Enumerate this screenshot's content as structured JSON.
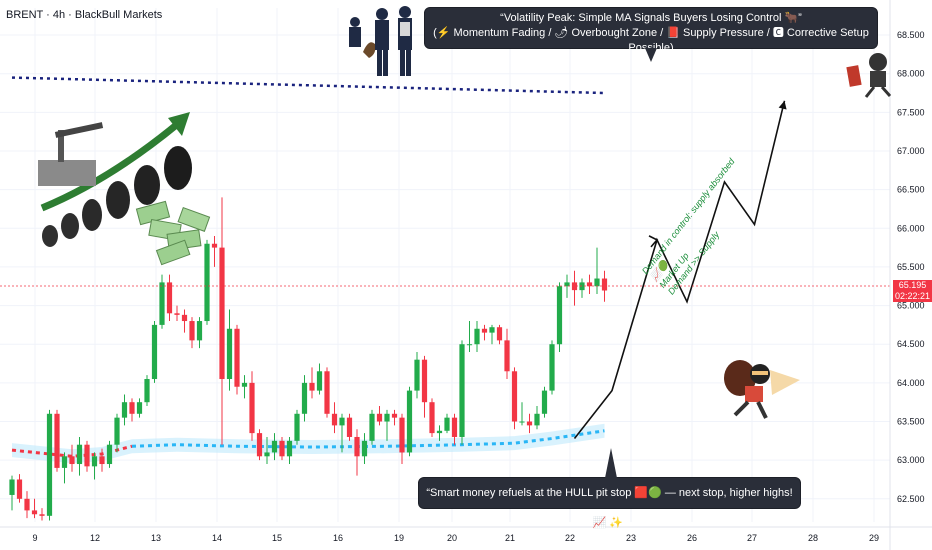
{
  "header": {
    "symbol": "BRENT · 4h · BlackBull Markets"
  },
  "current_price": {
    "value": "65.195",
    "countdown": "02:22:21",
    "color": "#f23645"
  },
  "colors": {
    "up": "#22ab4b",
    "down": "#f23645",
    "hull": "#29b6f6",
    "hull_band": "#bfe9fb",
    "resistance": "#1a237e"
  },
  "callouts": {
    "top_line1": "“Volatility Peak: Simple MA Signals Buyers Losing Control 🐂”",
    "top_line2": "(⚡ Momentum Fading / 🌶 Overbought Zone / 📕 Supply Pressure / 🅲 Corrective Setup Possible)",
    "bottom": "“Smart money refuels at the HULL pit stop 🟥🟢 — next stop, higher highs! 📈 ✨”"
  },
  "demand_note": [
    "Demand in control: supply absorbed 📈🟢",
    "Market Up",
    "Demand >> Supply"
  ],
  "illustrations": [
    "oil-barrels-with-cash-and-growth-arrow",
    "police-officers-with-dog",
    "thief-with-money-bag",
    "running-thief-with-cash"
  ],
  "chart_data": {
    "type": "candlestick",
    "title": "",
    "xlabel": "",
    "ylabel": "",
    "x_ticks": [
      "9",
      "12",
      "13",
      "14",
      "15",
      "16",
      "19",
      "20",
      "21",
      "22",
      "23",
      "26",
      "27",
      "28",
      "29"
    ],
    "y_ticks": [
      "62.500",
      "63.000",
      "63.500",
      "64.000",
      "64.500",
      "65.000",
      "65.500",
      "66.000",
      "66.500",
      "67.000",
      "67.500",
      "68.000",
      "68.500"
    ],
    "ylim": [
      62.2,
      68.85
    ],
    "candles": [
      {
        "o": 62.55,
        "h": 62.8,
        "l": 62.35,
        "c": 62.75
      },
      {
        "o": 62.75,
        "h": 62.82,
        "l": 62.45,
        "c": 62.5
      },
      {
        "o": 62.5,
        "h": 62.6,
        "l": 62.25,
        "c": 62.35
      },
      {
        "o": 62.35,
        "h": 62.5,
        "l": 62.25,
        "c": 62.3
      },
      {
        "o": 62.3,
        "h": 62.38,
        "l": 62.22,
        "c": 62.28
      },
      {
        "o": 62.28,
        "h": 63.65,
        "l": 62.22,
        "c": 63.6
      },
      {
        "o": 63.6,
        "h": 63.65,
        "l": 62.85,
        "c": 62.9
      },
      {
        "o": 62.9,
        "h": 63.1,
        "l": 62.7,
        "c": 63.05
      },
      {
        "o": 63.05,
        "h": 63.2,
        "l": 62.85,
        "c": 62.95
      },
      {
        "o": 62.95,
        "h": 63.3,
        "l": 62.8,
        "c": 63.2
      },
      {
        "o": 63.2,
        "h": 63.25,
        "l": 62.85,
        "c": 62.92
      },
      {
        "o": 62.92,
        "h": 63.1,
        "l": 62.75,
        "c": 63.05
      },
      {
        "o": 63.05,
        "h": 63.15,
        "l": 62.85,
        "c": 62.95
      },
      {
        "o": 62.95,
        "h": 63.25,
        "l": 62.9,
        "c": 63.2
      },
      {
        "o": 63.2,
        "h": 63.6,
        "l": 63.1,
        "c": 63.55
      },
      {
        "o": 63.55,
        "h": 63.85,
        "l": 63.45,
        "c": 63.75
      },
      {
        "o": 63.75,
        "h": 63.8,
        "l": 63.5,
        "c": 63.6
      },
      {
        "o": 63.6,
        "h": 63.8,
        "l": 63.55,
        "c": 63.75
      },
      {
        "o": 63.75,
        "h": 64.1,
        "l": 63.7,
        "c": 64.05
      },
      {
        "o": 64.05,
        "h": 64.8,
        "l": 64.0,
        "c": 64.75
      },
      {
        "o": 64.75,
        "h": 65.4,
        "l": 64.7,
        "c": 65.3
      },
      {
        "o": 65.3,
        "h": 65.4,
        "l": 64.8,
        "c": 64.9
      },
      {
        "o": 64.9,
        "h": 65.0,
        "l": 64.8,
        "c": 64.88
      },
      {
        "o": 64.88,
        "h": 64.95,
        "l": 64.65,
        "c": 64.8
      },
      {
        "o": 64.8,
        "h": 64.85,
        "l": 64.45,
        "c": 64.55
      },
      {
        "o": 64.55,
        "h": 64.85,
        "l": 64.45,
        "c": 64.8
      },
      {
        "o": 64.8,
        "h": 65.85,
        "l": 64.75,
        "c": 65.8
      },
      {
        "o": 65.8,
        "h": 65.9,
        "l": 65.5,
        "c": 65.75
      },
      {
        "o": 65.75,
        "h": 66.4,
        "l": 63.2,
        "c": 64.05
      },
      {
        "o": 64.05,
        "h": 64.95,
        "l": 63.9,
        "c": 64.7
      },
      {
        "o": 64.7,
        "h": 64.75,
        "l": 63.85,
        "c": 63.95
      },
      {
        "o": 63.95,
        "h": 64.1,
        "l": 63.8,
        "c": 64.0
      },
      {
        "o": 64.0,
        "h": 64.15,
        "l": 63.25,
        "c": 63.35
      },
      {
        "o": 63.35,
        "h": 63.4,
        "l": 63.0,
        "c": 63.05
      },
      {
        "o": 63.05,
        "h": 63.3,
        "l": 62.95,
        "c": 63.1
      },
      {
        "o": 63.1,
        "h": 63.35,
        "l": 63.0,
        "c": 63.25
      },
      {
        "o": 63.25,
        "h": 63.3,
        "l": 63.0,
        "c": 63.05
      },
      {
        "o": 63.05,
        "h": 63.3,
        "l": 62.95,
        "c": 63.25
      },
      {
        "o": 63.25,
        "h": 63.65,
        "l": 63.2,
        "c": 63.6
      },
      {
        "o": 63.6,
        "h": 64.1,
        "l": 63.5,
        "c": 64.0
      },
      {
        "o": 64.0,
        "h": 64.2,
        "l": 63.8,
        "c": 63.9
      },
      {
        "o": 63.9,
        "h": 64.25,
        "l": 63.85,
        "c": 64.15
      },
      {
        "o": 64.15,
        "h": 64.2,
        "l": 63.55,
        "c": 63.6
      },
      {
        "o": 63.6,
        "h": 63.75,
        "l": 63.35,
        "c": 63.45
      },
      {
        "o": 63.45,
        "h": 63.6,
        "l": 63.1,
        "c": 63.55
      },
      {
        "o": 63.55,
        "h": 63.6,
        "l": 63.25,
        "c": 63.3
      },
      {
        "o": 63.3,
        "h": 63.4,
        "l": 62.8,
        "c": 63.05
      },
      {
        "o": 63.05,
        "h": 63.35,
        "l": 62.95,
        "c": 63.25
      },
      {
        "o": 63.25,
        "h": 63.65,
        "l": 63.2,
        "c": 63.6
      },
      {
        "o": 63.6,
        "h": 63.7,
        "l": 63.45,
        "c": 63.5
      },
      {
        "o": 63.5,
        "h": 63.65,
        "l": 63.25,
        "c": 63.6
      },
      {
        "o": 63.6,
        "h": 63.65,
        "l": 63.45,
        "c": 63.55
      },
      {
        "o": 63.55,
        "h": 63.6,
        "l": 62.95,
        "c": 63.1
      },
      {
        "o": 63.1,
        "h": 63.95,
        "l": 63.05,
        "c": 63.9
      },
      {
        "o": 63.9,
        "h": 64.4,
        "l": 63.8,
        "c": 64.3
      },
      {
        "o": 64.3,
        "h": 64.35,
        "l": 63.55,
        "c": 63.75
      },
      {
        "o": 63.75,
        "h": 63.8,
        "l": 63.3,
        "c": 63.35
      },
      {
        "o": 63.35,
        "h": 63.45,
        "l": 63.25,
        "c": 63.38
      },
      {
        "o": 63.38,
        "h": 63.6,
        "l": 63.35,
        "c": 63.55
      },
      {
        "o": 63.55,
        "h": 63.6,
        "l": 63.2,
        "c": 63.3
      },
      {
        "o": 63.3,
        "h": 64.55,
        "l": 63.2,
        "c": 64.5
      },
      {
        "o": 64.5,
        "h": 64.8,
        "l": 64.4,
        "c": 64.5
      },
      {
        "o": 64.5,
        "h": 64.8,
        "l": 64.4,
        "c": 64.7
      },
      {
        "o": 64.7,
        "h": 64.75,
        "l": 64.55,
        "c": 64.65
      },
      {
        "o": 64.65,
        "h": 64.75,
        "l": 64.5,
        "c": 64.72
      },
      {
        "o": 64.72,
        "h": 64.75,
        "l": 64.5,
        "c": 64.55
      },
      {
        "o": 64.55,
        "h": 64.7,
        "l": 64.05,
        "c": 64.15
      },
      {
        "o": 64.15,
        "h": 64.2,
        "l": 63.4,
        "c": 63.5
      },
      {
        "o": 63.5,
        "h": 63.75,
        "l": 63.45,
        "c": 63.5
      },
      {
        "o": 63.5,
        "h": 63.6,
        "l": 63.35,
        "c": 63.45
      },
      {
        "o": 63.45,
        "h": 63.7,
        "l": 63.4,
        "c": 63.6
      },
      {
        "o": 63.6,
        "h": 63.95,
        "l": 63.55,
        "c": 63.9
      },
      {
        "o": 63.9,
        "h": 64.55,
        "l": 63.85,
        "c": 64.5
      },
      {
        "o": 64.5,
        "h": 65.3,
        "l": 64.4,
        "c": 65.25
      },
      {
        "o": 65.25,
        "h": 65.4,
        "l": 65.1,
        "c": 65.3
      },
      {
        "o": 65.3,
        "h": 65.45,
        "l": 65.0,
        "c": 65.2
      },
      {
        "o": 65.2,
        "h": 65.35,
        "l": 65.1,
        "c": 65.3
      },
      {
        "o": 65.3,
        "h": 65.4,
        "l": 65.15,
        "c": 65.25
      },
      {
        "o": 65.25,
        "h": 65.75,
        "l": 65.15,
        "c": 65.35
      },
      {
        "o": 65.35,
        "h": 65.45,
        "l": 65.05,
        "c": 65.195
      }
    ],
    "hull_ma": [
      [
        0,
        63.13
      ],
      [
        8,
        63.05
      ],
      [
        12,
        63.08
      ],
      [
        16,
        63.18
      ],
      [
        22,
        63.2
      ],
      [
        30,
        63.18
      ],
      [
        40,
        63.17
      ],
      [
        50,
        63.18
      ],
      [
        60,
        63.2
      ],
      [
        67,
        63.22
      ],
      [
        72,
        63.28
      ],
      [
        79,
        63.38
      ]
    ],
    "resistance_line": {
      "start": [
        0,
        67.95
      ],
      "end": [
        79,
        67.75
      ]
    },
    "projection_path": [
      [
        75,
        63.28
      ],
      [
        80,
        63.9
      ],
      [
        86,
        65.85
      ],
      [
        90,
        65.05
      ],
      [
        95,
        66.6
      ],
      [
        99,
        66.05
      ],
      [
        103,
        67.65
      ]
    ]
  }
}
